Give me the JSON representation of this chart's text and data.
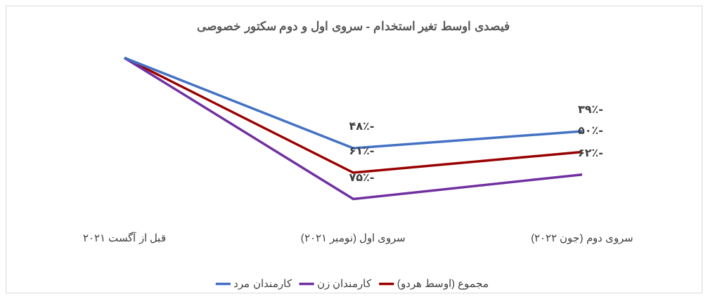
{
  "chart_data": {
    "type": "line",
    "title": "فیصدی اوسط تغیر استخدام - سروی اول و دوم سکتور خصوصی",
    "categories": [
      "قبل از آگست ۲۰۲۱",
      "سروی اول (نومبر ۲۰۲۱)",
      "سروی دوم (جون ۲۰۲۲)"
    ],
    "series": [
      {
        "name": "کارمندان مرد",
        "color": "#4472c4",
        "values": [
          0,
          -48,
          -39
        ],
        "value_labels": [
          null,
          "-۴۸٪",
          "-۳۹٪"
        ]
      },
      {
        "name": "کارمندان زن",
        "color": "#7030a0",
        "values": [
          0,
          -75,
          -62
        ],
        "value_labels": [
          null,
          "-۷۵٪",
          "-۶۲٪"
        ]
      },
      {
        "name": "مجموع (اوسط هردو)",
        "color": "#990000",
        "values": [
          0,
          -61,
          -50
        ],
        "value_labels": [
          null,
          "-۶۱٪",
          "-۵۰٪"
        ]
      }
    ],
    "legend": "bottom",
    "grid": false,
    "marker": "none",
    "line_style": "solid"
  }
}
